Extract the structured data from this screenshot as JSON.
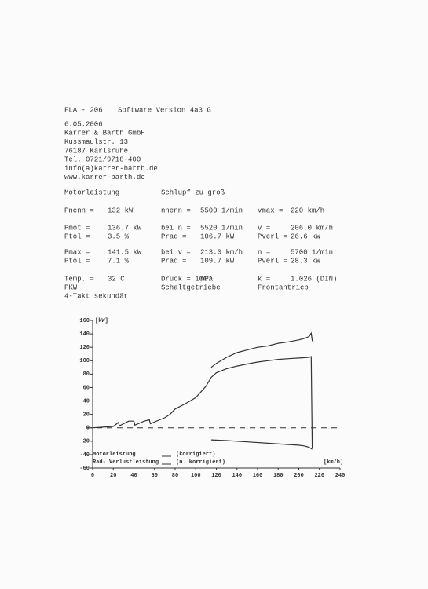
{
  "header": {
    "title": "FLA - 206",
    "version": "Software Version  4a3 G"
  },
  "address": [
    "6.05.2006",
    "Karrer & Barth GmbH",
    "Kussmaulstr. 13",
    "76187 Karlsruhe",
    "Tel. 0721/9718-400",
    "info(a)karrer-barth.de",
    "www.karrer-barth.de"
  ],
  "section": {
    "title": "Motorleistung",
    "note": "Schlupf zu groß"
  },
  "table": {
    "rows": [
      [
        "Pnenn =",
        "132 kW",
        "nnenn =",
        "5500 1/min",
        "vmax =",
        "220 km/h"
      ],
      [
        "Pmot =",
        "136.7 kW",
        "bei n =",
        "5520 1/min",
        "v =",
        "206.0 km/h"
      ],
      [
        "Ptol =",
        "3.5 %",
        "Prad =",
        "106.7 kW",
        "Pverl =",
        "26.6 kW"
      ],
      [
        "Pmax =",
        "141.5 kW",
        "bei v =",
        "213.0 km/h",
        "n =",
        "5700 1/min"
      ],
      [
        "Ptol =",
        "7.1 %",
        "Prad =",
        "109.7 kW",
        "Pverl =",
        "28.3 kW"
      ],
      [
        "Temp. =",
        "32  C",
        "Druck = 1007",
        "hPa",
        "k =",
        "1.026 (DIN)"
      ]
    ],
    "footer": [
      "PKW",
      "Schaltgetriebe",
      "Frontantrieb"
    ],
    "last": "4-Takt sekundär"
  },
  "chart_data": {
    "type": "line",
    "ylabel": "[kW]",
    "xlabel": "[km/h]",
    "xlim": [
      0,
      240
    ],
    "xticks": [
      0,
      20,
      40,
      60,
      80,
      100,
      120,
      140,
      160,
      180,
      200,
      220,
      240
    ],
    "ylim": [
      -60,
      160
    ],
    "yticks": [
      -60,
      -40,
      -20,
      0,
      20,
      40,
      60,
      80,
      100,
      120,
      140,
      160
    ],
    "zero_line": true,
    "legend": [
      {
        "label": "Motorleistung",
        "note": "(korrigiert)"
      },
      {
        "label": "Rad- Verlustleistung",
        "note": "(n. korrigiert)"
      }
    ],
    "series": [
      {
        "color": "#333333",
        "x": [
          0,
          10,
          20,
          25,
          26,
          35,
          40,
          41,
          50,
          55,
          56,
          65,
          70,
          75,
          80,
          90,
          100,
          110,
          115,
          120,
          130,
          140,
          150,
          160,
          170,
          180,
          190,
          200,
          210,
          212,
          213
        ],
        "values": [
          0,
          1,
          2,
          8,
          3,
          10,
          10,
          4,
          10,
          12,
          6,
          12,
          15,
          20,
          28,
          36,
          45,
          62,
          75,
          82,
          88,
          92,
          95,
          98,
          100,
          102,
          103,
          104,
          105,
          106,
          -30
        ]
      },
      {
        "name": "Motorleistung",
        "color": "#333333",
        "x": [
          115,
          120,
          130,
          140,
          150,
          160,
          170,
          180,
          190,
          200,
          205,
          210,
          212,
          213,
          214
        ],
        "values": [
          90,
          96,
          105,
          112,
          116,
          120,
          122,
          126,
          128,
          131,
          133,
          136,
          141,
          130,
          128
        ]
      },
      {
        "name": "Rad- Verlustleistung",
        "color": "#333333",
        "x": [
          115,
          130,
          150,
          170,
          190,
          200,
          205,
          210,
          213
        ],
        "values": [
          -18,
          -19,
          -21,
          -23,
          -25,
          -26,
          -27,
          -29,
          -32
        ]
      }
    ]
  }
}
